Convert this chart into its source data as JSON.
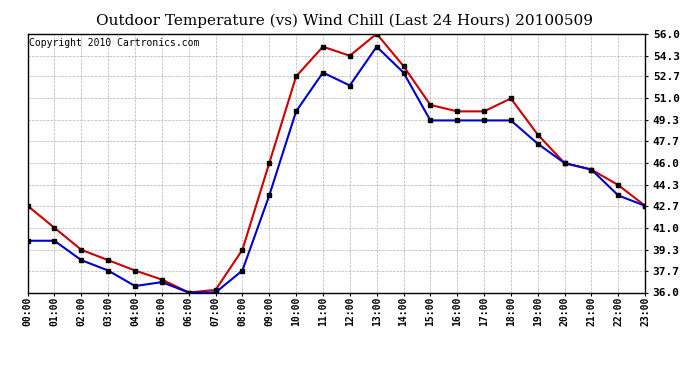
{
  "title": "Outdoor Temperature (vs) Wind Chill (Last 24 Hours) 20100509",
  "copyright": "Copyright 2010 Cartronics.com",
  "hours": [
    "00:00",
    "01:00",
    "02:00",
    "03:00",
    "04:00",
    "05:00",
    "06:00",
    "07:00",
    "08:00",
    "09:00",
    "10:00",
    "11:00",
    "12:00",
    "13:00",
    "14:00",
    "15:00",
    "16:00",
    "17:00",
    "18:00",
    "19:00",
    "20:00",
    "21:00",
    "22:00",
    "23:00"
  ],
  "temp": [
    42.7,
    41.0,
    39.3,
    38.5,
    37.7,
    37.0,
    36.0,
    36.2,
    39.3,
    46.0,
    52.7,
    55.0,
    54.3,
    56.0,
    53.5,
    50.5,
    50.0,
    50.0,
    51.0,
    48.2,
    46.0,
    45.5,
    44.3,
    42.7
  ],
  "wind_chill": [
    40.0,
    40.0,
    38.5,
    37.7,
    36.5,
    36.8,
    36.0,
    36.0,
    37.7,
    43.5,
    50.0,
    53.0,
    52.0,
    55.0,
    53.0,
    49.3,
    49.3,
    49.3,
    49.3,
    47.5,
    46.0,
    45.5,
    43.5,
    42.7
  ],
  "temp_color": "#cc0000",
  "wind_chill_color": "#0000cc",
  "background_color": "#ffffff",
  "plot_bg_color": "#ffffff",
  "grid_color": "#aaaaaa",
  "yticks": [
    36.0,
    37.7,
    39.3,
    41.0,
    42.7,
    44.3,
    46.0,
    47.7,
    49.3,
    51.0,
    52.7,
    54.3,
    56.0
  ],
  "ymin": 36.0,
  "ymax": 56.0,
  "title_fontsize": 11,
  "copyright_fontsize": 7,
  "markersize": 3,
  "linewidth": 1.5
}
